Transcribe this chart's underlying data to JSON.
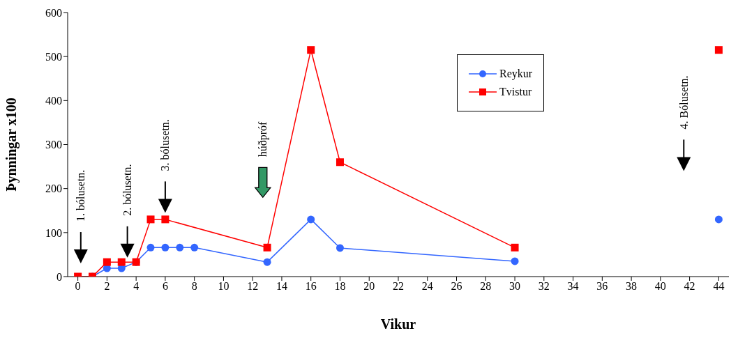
{
  "chart_data": {
    "type": "line",
    "xlabel": "Vikur",
    "ylabel": "Þynningar x100",
    "xlim": [
      -0.7,
      44.7
    ],
    "xticks": [
      0,
      2,
      4,
      6,
      8,
      10,
      12,
      14,
      16,
      18,
      20,
      22,
      24,
      26,
      28,
      30,
      32,
      34,
      36,
      38,
      40,
      42,
      44
    ],
    "ylim": [
      0,
      600
    ],
    "yticks": [
      0,
      100,
      200,
      300,
      400,
      500,
      600
    ],
    "series": [
      {
        "name": "Reykur",
        "color": "#3366ff",
        "marker": "circle",
        "x": [
          1,
          2,
          3,
          4,
          5,
          6,
          7,
          8,
          13,
          16,
          18,
          30,
          37,
          44
        ],
        "values": [
          0,
          19,
          19,
          33,
          66,
          66,
          66,
          66,
          33,
          130,
          65,
          35,
          null,
          130
        ]
      },
      {
        "name": "Tvistur",
        "color": "#ff0000",
        "marker": "square",
        "x": [
          0,
          1,
          2,
          3,
          4,
          5,
          6,
          13,
          16,
          18,
          30,
          37,
          44
        ],
        "values": [
          0,
          0,
          33,
          33,
          33,
          130,
          130,
          66,
          515,
          260,
          66,
          null,
          515
        ]
      }
    ],
    "annotations": [
      "1. bólusetn.",
      "2. bólusetn.",
      "3. bólusetn.",
      "húðpróf",
      "4. Bólusetn."
    ],
    "legend": "top right",
    "grid": false,
    "line_style": "solid"
  }
}
